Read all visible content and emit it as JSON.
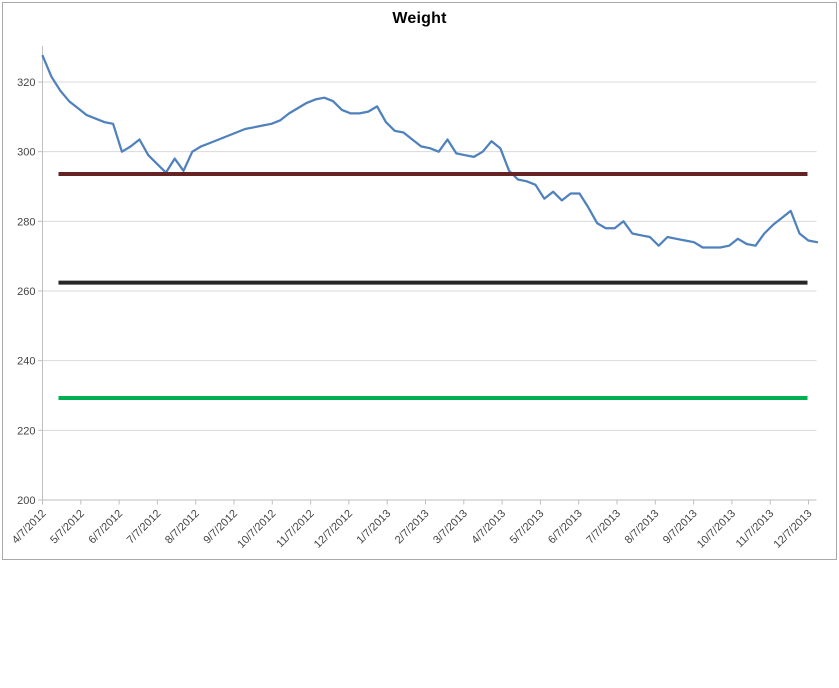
{
  "chart": {
    "background": "#ffffff",
    "border_color": "#a9a9a9"
  },
  "chart_data": {
    "type": "line",
    "title": "Weight",
    "grid": true,
    "legend": "none",
    "x_axis": {
      "tick_labels": [
        "4/7/2012",
        "5/7/2012",
        "6/7/2012",
        "7/7/2012",
        "8/7/2012",
        "9/7/2012",
        "10/7/2012",
        "11/7/2012",
        "12/7/2012",
        "1/7/2013",
        "2/7/2013",
        "3/7/2013",
        "4/7/2013",
        "5/7/2013",
        "6/7/2013",
        "7/7/2013",
        "8/7/2013",
        "9/7/2013",
        "10/7/2013",
        "11/7/2013",
        "12/7/2013"
      ],
      "label_rotation_deg": -45,
      "data_cadence": "weekly"
    },
    "y_axis": {
      "ticks": [
        200,
        220,
        240,
        260,
        280,
        300,
        320
      ],
      "range": [
        200,
        332
      ]
    },
    "series": [
      {
        "name": "Weight",
        "color": "#4f81bd",
        "stroke_width": 2.25,
        "first_point_label": "4/7/2012",
        "values": [
          327.5,
          321.5,
          317.5,
          314.5,
          312.5,
          310.5,
          309.5,
          308.5,
          308,
          300,
          301.5,
          303.5,
          299,
          296.5,
          294,
          298,
          294.5,
          300,
          301.5,
          302.5,
          303.5,
          304.5,
          305.5,
          306.5,
          307,
          307.5,
          308,
          309,
          311,
          312.5,
          314,
          315,
          315.5,
          314.5,
          312,
          311,
          311,
          311.5,
          313,
          308.5,
          306,
          305.5,
          303.5,
          301.5,
          301,
          300,
          303.5,
          299.5,
          299,
          298.5,
          300,
          303,
          301,
          294.5,
          292,
          291.5,
          290.5,
          286.5,
          288.5,
          286,
          288,
          288,
          284,
          279.5,
          278,
          278,
          280,
          276.5,
          276,
          275.5,
          273,
          275.5,
          275,
          274.5,
          274,
          272.5,
          272.5,
          272.5,
          273,
          275,
          273.5,
          273,
          276.5,
          279,
          281,
          283,
          276.5,
          274.5,
          274
        ]
      }
    ],
    "reference_lines": [
      {
        "name": "upper-goal-line",
        "value": 293.6,
        "color": "#632423",
        "stroke_width": 4
      },
      {
        "name": "middle-goal-line",
        "value": 262.4,
        "color": "#262626",
        "stroke_width": 4
      },
      {
        "name": "lower-goal-line",
        "value": 229.3,
        "color": "#00b050",
        "stroke_width": 4
      }
    ],
    "style": {
      "gridline_color": "#d9d9d9",
      "axis_color": "#bfbfbf",
      "tick_label_color": "#444444",
      "tick_label_size": 11
    }
  }
}
